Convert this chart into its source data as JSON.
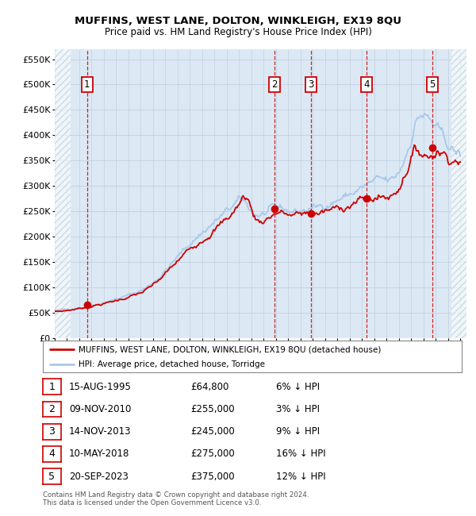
{
  "title": "MUFFINS, WEST LANE, DOLTON, WINKLEIGH, EX19 8QU",
  "subtitle": "Price paid vs. HM Land Registry's House Price Index (HPI)",
  "ylabel_ticks": [
    "£0",
    "£50K",
    "£100K",
    "£150K",
    "£200K",
    "£250K",
    "£300K",
    "£350K",
    "£400K",
    "£450K",
    "£500K",
    "£550K"
  ],
  "ytick_values": [
    0,
    50000,
    100000,
    150000,
    200000,
    250000,
    300000,
    350000,
    400000,
    450000,
    500000,
    550000
  ],
  "xmin": 1993.0,
  "xmax": 2026.5,
  "ymin": 0,
  "ymax": 570000,
  "sales": [
    {
      "label": 1,
      "date": 1995.62,
      "price": 64800,
      "pct": "6% ↓ HPI",
      "date_str": "15-AUG-1995",
      "price_str": "£64,800"
    },
    {
      "label": 2,
      "date": 2010.86,
      "price": 255000,
      "pct": "3% ↓ HPI",
      "date_str": "09-NOV-2010",
      "price_str": "£255,000"
    },
    {
      "label": 3,
      "date": 2013.87,
      "price": 245000,
      "pct": "9% ↓ HPI",
      "date_str": "14-NOV-2013",
      "price_str": "£245,000"
    },
    {
      "label": 4,
      "date": 2018.36,
      "price": 275000,
      "pct": "16% ↓ HPI",
      "date_str": "10-MAY-2018",
      "price_str": "£275,000"
    },
    {
      "label": 5,
      "date": 2023.72,
      "price": 375000,
      "pct": "12% ↓ HPI",
      "date_str": "20-SEP-2023",
      "price_str": "£375,000"
    }
  ],
  "legend_line1": "MUFFINS, WEST LANE, DOLTON, WINKLEIGH, EX19 8QU (detached house)",
  "legend_line2": "HPI: Average price, detached house, Torridge",
  "footer": "Contains HM Land Registry data © Crown copyright and database right 2024.\nThis data is licensed under the Open Government Licence v3.0.",
  "hpi_color": "#a8c8e8",
  "property_color": "#cc0000",
  "plot_bg": "#dce9f5",
  "hatch_color": "#b8c8d8",
  "grid_color": "#c0d0e0",
  "vline_color": "#cc0000",
  "box_color": "#cc0000"
}
